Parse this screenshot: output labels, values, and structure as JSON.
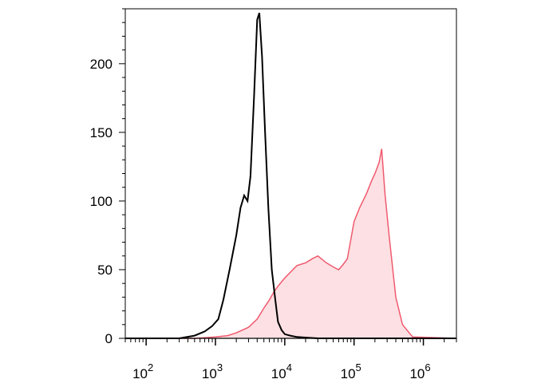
{
  "chart_data": {
    "type": "area",
    "title": "",
    "xlabel": "",
    "ylabel": "",
    "x_scale": "log",
    "xlim": [
      50,
      3000000
    ],
    "ylim": [
      0,
      240
    ],
    "grid": false,
    "legend": "none",
    "y_ticks": [
      "0",
      "50",
      "100",
      "150",
      "200"
    ],
    "y_tick_values": [
      0,
      50,
      100,
      150,
      200
    ],
    "x_ticks": [
      {
        "base": "10",
        "exp": "2",
        "value": 100
      },
      {
        "base": "10",
        "exp": "3",
        "value": 1000
      },
      {
        "base": "10",
        "exp": "4",
        "value": 10000
      },
      {
        "base": "10",
        "exp": "5",
        "value": 100000
      },
      {
        "base": "10",
        "exp": "6",
        "value": 1000000
      }
    ],
    "series": [
      {
        "style": "line",
        "color": "#000000",
        "x": [
          50,
          150,
          300,
          500,
          700,
          900,
          1100,
          1300,
          1600,
          2000,
          2300,
          2600,
          2900,
          3200,
          3600,
          4000,
          4300,
          4700,
          5200,
          5800,
          6500,
          7300,
          8000,
          9000,
          10000,
          12000,
          15000,
          30000,
          100000,
          3000000
        ],
        "y": [
          0,
          0,
          0,
          2,
          5,
          9,
          14,
          28,
          50,
          75,
          95,
          104,
          100,
          118,
          175,
          232,
          237,
          205,
          150,
          95,
          50,
          28,
          12,
          6,
          3,
          2,
          1,
          0,
          0,
          0
        ]
      },
      {
        "style": "area",
        "color": "#f05a6e",
        "fill": "#fde0e3",
        "x": [
          50,
          500,
          1000,
          1500,
          2000,
          3000,
          4000,
          5000,
          6000,
          7000,
          8000,
          10000,
          12000,
          15000,
          20000,
          25000,
          30000,
          40000,
          50000,
          60000,
          70000,
          80000,
          100000,
          120000,
          150000,
          180000,
          200000,
          230000,
          250000,
          280000,
          320000,
          400000,
          500000,
          700000,
          3000000
        ],
        "y": [
          0,
          0,
          1,
          2,
          4,
          8,
          14,
          22,
          28,
          34,
          38,
          44,
          48,
          53,
          55,
          58,
          60,
          55,
          52,
          50,
          54,
          58,
          85,
          95,
          105,
          115,
          120,
          128,
          138,
          105,
          75,
          30,
          10,
          1,
          0
        ]
      }
    ]
  }
}
